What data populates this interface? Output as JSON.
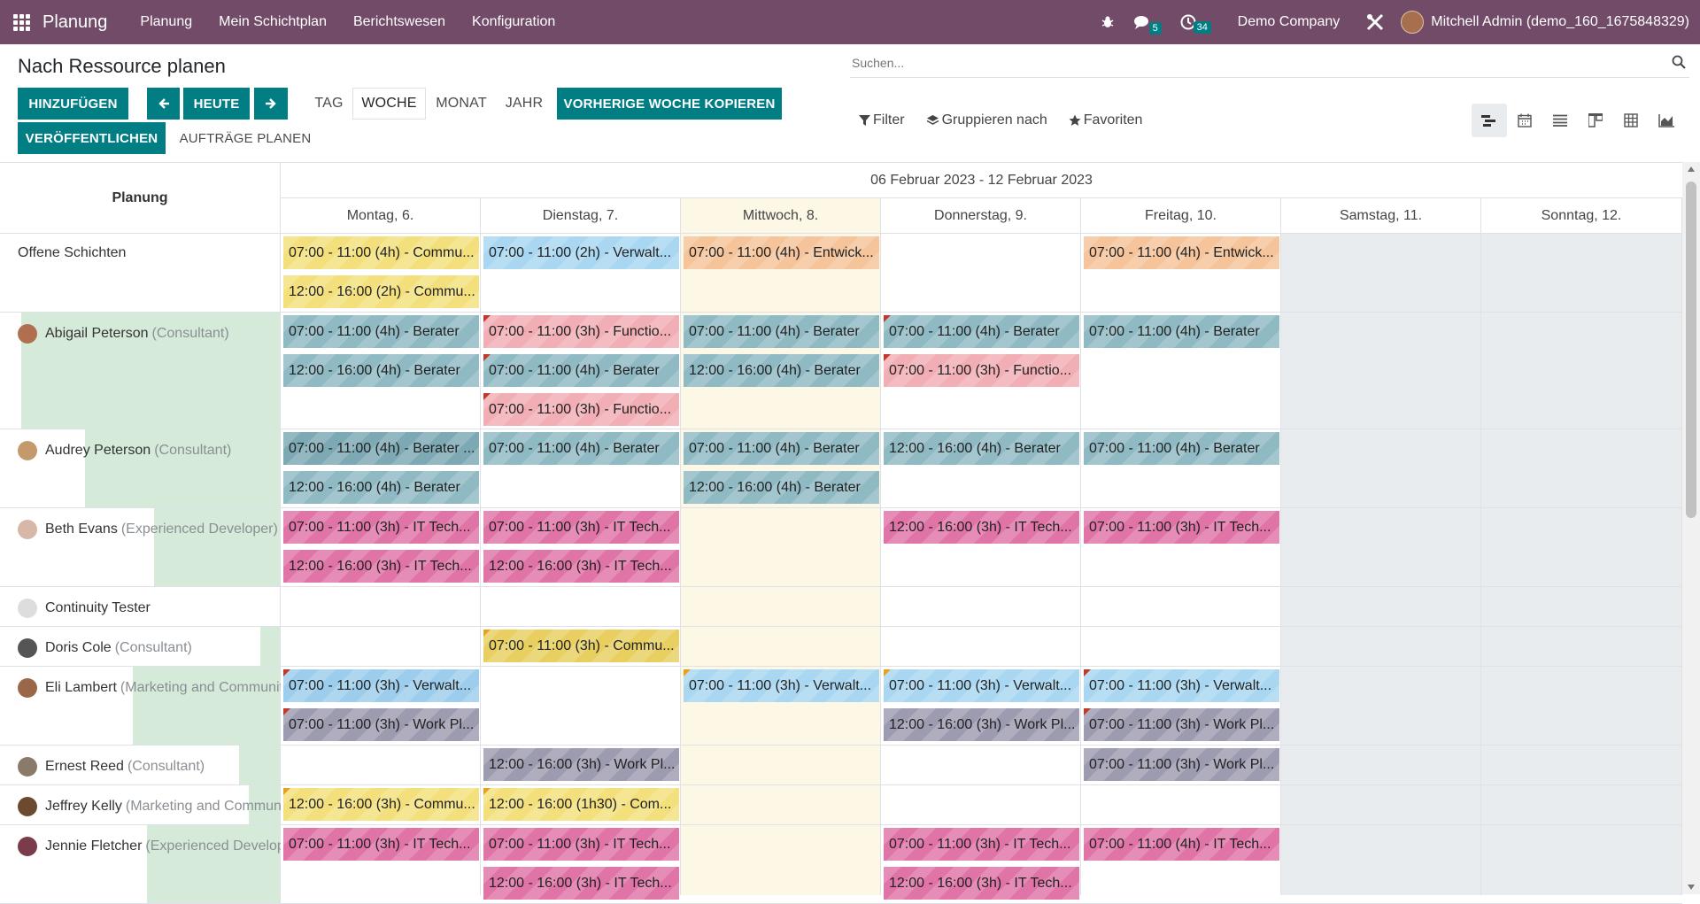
{
  "nav": {
    "brand": "Planung",
    "menu": [
      "Planung",
      "Mein Schichtplan",
      "Berichtswesen",
      "Konfiguration"
    ],
    "messages_count": "5",
    "activities_count": "34",
    "company": "Demo Company",
    "user": "Mitchell Admin (demo_160_1675848329)"
  },
  "control": {
    "title": "Nach Ressource planen",
    "search_placeholder": "Suchen...",
    "add": "HINZUFÜGEN",
    "today": "HEUTE",
    "scale_day": "TAG",
    "scale_week": "WOCHE",
    "scale_month": "MONAT",
    "scale_year": "JAHR",
    "copy_prev": "VORHERIGE WOCHE KOPIEREN",
    "publish": "VERÖFFENTLICHEN",
    "plan_orders": "AUFTRÄGE PLANEN",
    "filter": "Filter",
    "group_by": "Gruppieren nach",
    "favorites": "Favoriten"
  },
  "gantt": {
    "row_header": "Planung",
    "range": "06 Februar 2023 - 12 Februar 2023",
    "days": [
      "Montag, 6.",
      "Dienstag, 7.",
      "Mittwoch, 8.",
      "Donnerstag, 9.",
      "Freitag, 10.",
      "Samstag, 11.",
      "Sonntag, 12."
    ],
    "today_index": 2,
    "rows": [
      {
        "name": "Offene Schichten",
        "role": ""
      },
      {
        "name": "Abigail Peterson",
        "role": "(Consultant)",
        "avatar": "#b07050"
      },
      {
        "name": "Audrey Peterson",
        "role": "(Consultant)",
        "avatar": "#c49a6c"
      },
      {
        "name": "Beth Evans",
        "role": "(Experienced Developer)",
        "avatar": "#d7b7a7"
      },
      {
        "name": "Continuity Tester",
        "role": "",
        "avatar": "#dddddd"
      },
      {
        "name": "Doris Cole",
        "role": "(Consultant)",
        "avatar": "#555555"
      },
      {
        "name": "Eli Lambert",
        "role": "(Marketing and Community Manager)",
        "avatar": "#9a6848"
      },
      {
        "name": "Ernest Reed",
        "role": "(Consultant)",
        "avatar": "#8a7a6a"
      },
      {
        "name": "Jeffrey Kelly",
        "role": "(Marketing and Community Manager)",
        "avatar": "#6b4a2f"
      },
      {
        "name": "Jennie Fletcher",
        "role": "(Experienced Developer)",
        "avatar": "#7a3b4b"
      }
    ],
    "pills": [
      {
        "row": 0,
        "day": 0,
        "slot": 0,
        "text": "07:00 - 11:00 (4h) - Commu...",
        "kind": "yellow"
      },
      {
        "row": 0,
        "day": 0,
        "slot": 1,
        "text": "12:00 - 16:00 (2h) - Commu...",
        "kind": "yellow"
      },
      {
        "row": 0,
        "day": 1,
        "slot": 0,
        "text": "07:00 - 11:00 (2h) - Verwalt...",
        "kind": "blue"
      },
      {
        "row": 0,
        "day": 2,
        "slot": 0,
        "text": "07:00 - 11:00 (4h) - Entwick...",
        "kind": "orange"
      },
      {
        "row": 0,
        "day": 4,
        "slot": 0,
        "text": "07:00 - 11:00 (4h) - Entwick...",
        "kind": "orange"
      },
      {
        "row": 1,
        "day": 0,
        "slot": 0,
        "text": "07:00 - 11:00 (4h) - Berater",
        "kind": "teal"
      },
      {
        "row": 1,
        "day": 0,
        "slot": 1,
        "text": "12:00 - 16:00 (4h) - Berater",
        "kind": "teal"
      },
      {
        "row": 1,
        "day": 1,
        "slot": 0,
        "text": "07:00 - 11:00 (3h) - Functio...",
        "kind": "pinkl",
        "flag": "r"
      },
      {
        "row": 1,
        "day": 1,
        "slot": 1,
        "text": "07:00 - 11:00 (4h) - Berater",
        "kind": "teal",
        "flag": "r"
      },
      {
        "row": 1,
        "day": 1,
        "slot": 2,
        "text": "07:00 - 11:00 (3h) - Functio...",
        "kind": "pinkl",
        "flag": "r"
      },
      {
        "row": 1,
        "day": 2,
        "slot": 0,
        "text": "07:00 - 11:00 (4h) - Berater",
        "kind": "teal"
      },
      {
        "row": 1,
        "day": 2,
        "slot": 1,
        "text": "12:00 - 16:00 (4h) - Berater",
        "kind": "teal"
      },
      {
        "row": 1,
        "day": 3,
        "slot": 0,
        "text": "07:00 - 11:00 (4h) - Berater",
        "kind": "teal",
        "flag": "r"
      },
      {
        "row": 1,
        "day": 3,
        "slot": 1,
        "text": "07:00 - 11:00 (3h) - Functio...",
        "kind": "pinkl",
        "flag": "r"
      },
      {
        "row": 1,
        "day": 4,
        "slot": 0,
        "text": "07:00 - 11:00 (4h) - Berater",
        "kind": "teal"
      },
      {
        "row": 2,
        "day": 0,
        "slot": 0,
        "text": "07:00 - 11:00 (4h) - Berater ...",
        "kind": "tealdark"
      },
      {
        "row": 2,
        "day": 0,
        "slot": 1,
        "text": "12:00 - 16:00 (4h) - Berater",
        "kind": "teal"
      },
      {
        "row": 2,
        "day": 1,
        "slot": 0,
        "text": "07:00 - 11:00 (4h) - Berater",
        "kind": "teal"
      },
      {
        "row": 2,
        "day": 2,
        "slot": 0,
        "text": "07:00 - 11:00 (4h) - Berater",
        "kind": "teal"
      },
      {
        "row": 2,
        "day": 2,
        "slot": 1,
        "text": "12:00 - 16:00 (4h) - Berater",
        "kind": "teal"
      },
      {
        "row": 2,
        "day": 3,
        "slot": 0,
        "text": "12:00 - 16:00 (4h) - Berater",
        "kind": "teal"
      },
      {
        "row": 2,
        "day": 4,
        "slot": 0,
        "text": "07:00 - 11:00 (4h) - Berater",
        "kind": "teal"
      },
      {
        "row": 3,
        "day": 0,
        "slot": 0,
        "text": "07:00 - 11:00 (3h) - IT Tech...",
        "kind": "pink"
      },
      {
        "row": 3,
        "day": 0,
        "slot": 1,
        "text": "12:00 - 16:00 (3h) - IT Tech...",
        "kind": "pink"
      },
      {
        "row": 3,
        "day": 1,
        "slot": 0,
        "text": "07:00 - 11:00 (3h) - IT Tech...",
        "kind": "pink"
      },
      {
        "row": 3,
        "day": 1,
        "slot": 1,
        "text": "12:00 - 16:00 (3h) - IT Tech...",
        "kind": "pink"
      },
      {
        "row": 3,
        "day": 3,
        "slot": 0,
        "text": "12:00 - 16:00 (3h) - IT Tech...",
        "kind": "pink"
      },
      {
        "row": 3,
        "day": 4,
        "slot": 0,
        "text": "07:00 - 11:00 (3h) - IT Tech...",
        "kind": "pink"
      },
      {
        "row": 5,
        "day": 1,
        "slot": 0,
        "text": "07:00 - 11:00 (3h) - Commu...",
        "kind": "yellowdark",
        "flag": "w"
      },
      {
        "row": 6,
        "day": 0,
        "slot": 0,
        "text": "07:00 - 11:00 (3h) - Verwalt...",
        "kind": "bluedark",
        "flag": "r"
      },
      {
        "row": 6,
        "day": 0,
        "slot": 1,
        "text": "07:00 - 11:00 (3h) - Work Pl...",
        "kind": "grey",
        "flag": "r"
      },
      {
        "row": 6,
        "day": 2,
        "slot": 0,
        "text": "07:00 - 11:00 (3h) - Verwalt...",
        "kind": "blue",
        "flag": "w"
      },
      {
        "row": 6,
        "day": 3,
        "slot": 0,
        "text": "07:00 - 11:00 (3h) - Verwalt...",
        "kind": "blue",
        "flag": "w"
      },
      {
        "row": 6,
        "day": 3,
        "slot": 1,
        "text": "12:00 - 16:00 (3h) - Work Pl...",
        "kind": "grey"
      },
      {
        "row": 6,
        "day": 4,
        "slot": 0,
        "text": "07:00 - 11:00 (3h) - Verwalt...",
        "kind": "blue",
        "flag": "r"
      },
      {
        "row": 6,
        "day": 4,
        "slot": 1,
        "text": "07:00 - 11:00 (3h) - Work Pl...",
        "kind": "grey",
        "flag": "r"
      },
      {
        "row": 7,
        "day": 1,
        "slot": 0,
        "text": "12:00 - 16:00 (3h) - Work Pl...",
        "kind": "grey"
      },
      {
        "row": 7,
        "day": 4,
        "slot": 0,
        "text": "07:00 - 11:00 (3h) - Work Pl...",
        "kind": "grey"
      },
      {
        "row": 8,
        "day": 0,
        "slot": 0,
        "text": "12:00 - 16:00 (3h) - Commu...",
        "kind": "yellow",
        "flag": "w"
      },
      {
        "row": 8,
        "day": 1,
        "slot": 0,
        "text": "12:00 - 16:00 (1h30) - Com...",
        "kind": "yellow",
        "flag": "w"
      },
      {
        "row": 9,
        "day": 0,
        "slot": 0,
        "text": "07:00 - 11:00 (3h) - IT Tech...",
        "kind": "pink"
      },
      {
        "row": 9,
        "day": 1,
        "slot": 0,
        "text": "07:00 - 11:00 (3h) - IT Tech...",
        "kind": "pink"
      },
      {
        "row": 9,
        "day": 1,
        "slot": 1,
        "text": "12:00 - 16:00 (3h) - IT Tech...",
        "kind": "pink"
      },
      {
        "row": 9,
        "day": 3,
        "slot": 0,
        "text": "07:00 - 11:00 (3h) - IT Tech...",
        "kind": "pink"
      },
      {
        "row": 9,
        "day": 3,
        "slot": 1,
        "text": "12:00 - 16:00 (3h) - IT Tech...",
        "kind": "pink"
      },
      {
        "row": 9,
        "day": 4,
        "slot": 0,
        "text": "07:00 - 11:00 (4h) - IT Tech...",
        "kind": "pink"
      }
    ],
    "colors": {
      "yellow": "#f3e07c",
      "yellowdark": "#e8cf5f",
      "blue": "#a9d7f2",
      "bluedark": "#9ccdec",
      "orange": "#f5c49a",
      "teal": "#8fbac4",
      "tealdark": "#7ca9b4",
      "pink": "#e174a7",
      "pinkl": "#f1aeb4",
      "grey": "#9d9bb0",
      "today": "#fdf8e6",
      "weekend": "#e9ecef",
      "label_fill": "#d5ead8"
    }
  }
}
